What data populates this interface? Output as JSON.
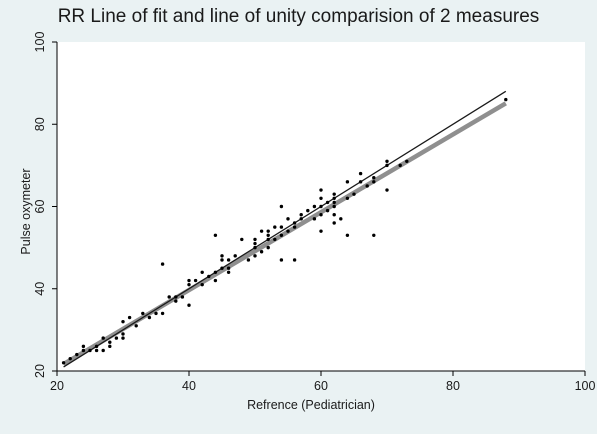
{
  "chart_data": {
    "type": "scatter",
    "title": "RR Line of fit and line of unity comparision of 2 measures",
    "xlabel": "Refrence (Pediatrician)",
    "ylabel": "Pulse oxymeter",
    "xlim": [
      20,
      100
    ],
    "ylim": [
      20,
      100
    ],
    "xticks": [
      20,
      40,
      60,
      80,
      100
    ],
    "yticks": [
      20,
      40,
      60,
      80,
      100
    ],
    "grid": false,
    "legend": "none",
    "colors": {
      "background": "#eaf2f3",
      "plot_area": "#ffffff",
      "points": "#000000",
      "unity_line": "#1a1a1a",
      "fit_line": "#8f8f8f"
    },
    "series": [
      {
        "kind": "points",
        "points": [
          [
            21,
            22
          ],
          [
            22,
            23
          ],
          [
            23,
            24
          ],
          [
            24,
            25
          ],
          [
            24,
            26
          ],
          [
            25,
            25
          ],
          [
            26,
            26
          ],
          [
            26,
            25
          ],
          [
            27,
            28
          ],
          [
            27,
            25
          ],
          [
            28,
            27
          ],
          [
            28,
            26
          ],
          [
            29,
            28
          ],
          [
            30,
            29
          ],
          [
            30,
            28
          ],
          [
            30,
            32
          ],
          [
            31,
            33
          ],
          [
            32,
            31
          ],
          [
            33,
            34
          ],
          [
            34,
            33
          ],
          [
            35,
            34
          ],
          [
            36,
            34
          ],
          [
            36,
            46
          ],
          [
            37,
            38
          ],
          [
            38,
            37
          ],
          [
            38,
            38
          ],
          [
            39,
            38
          ],
          [
            40,
            36
          ],
          [
            40,
            41
          ],
          [
            40,
            42
          ],
          [
            41,
            42
          ],
          [
            42,
            41
          ],
          [
            42,
            44
          ],
          [
            43,
            43
          ],
          [
            44,
            42
          ],
          [
            44,
            44
          ],
          [
            44,
            53
          ],
          [
            45,
            45
          ],
          [
            45,
            47
          ],
          [
            45,
            48
          ],
          [
            46,
            44
          ],
          [
            46,
            45
          ],
          [
            46,
            47
          ],
          [
            47,
            48
          ],
          [
            48,
            52
          ],
          [
            49,
            47
          ],
          [
            50,
            48
          ],
          [
            50,
            50
          ],
          [
            50,
            51
          ],
          [
            50,
            52
          ],
          [
            51,
            49
          ],
          [
            51,
            54
          ],
          [
            52,
            50
          ],
          [
            52,
            52
          ],
          [
            52,
            53
          ],
          [
            52,
            54
          ],
          [
            53,
            52
          ],
          [
            53,
            55
          ],
          [
            54,
            47
          ],
          [
            54,
            53
          ],
          [
            54,
            55
          ],
          [
            54,
            60
          ],
          [
            55,
            54
          ],
          [
            55,
            57
          ],
          [
            56,
            47
          ],
          [
            56,
            55
          ],
          [
            56,
            56
          ],
          [
            57,
            57
          ],
          [
            57,
            58
          ],
          [
            58,
            59
          ],
          [
            59,
            57
          ],
          [
            59,
            60
          ],
          [
            60,
            54
          ],
          [
            60,
            58
          ],
          [
            60,
            60
          ],
          [
            60,
            62
          ],
          [
            60,
            64
          ],
          [
            61,
            59
          ],
          [
            61,
            61
          ],
          [
            62,
            56
          ],
          [
            62,
            58
          ],
          [
            62,
            60
          ],
          [
            62,
            61
          ],
          [
            62,
            62
          ],
          [
            62,
            63
          ],
          [
            63,
            57
          ],
          [
            64,
            53
          ],
          [
            64,
            62
          ],
          [
            64,
            66
          ],
          [
            65,
            63
          ],
          [
            66,
            66
          ],
          [
            66,
            68
          ],
          [
            67,
            65
          ],
          [
            68,
            53
          ],
          [
            68,
            66
          ],
          [
            68,
            67
          ],
          [
            70,
            64
          ],
          [
            70,
            70
          ],
          [
            70,
            71
          ],
          [
            72,
            70
          ],
          [
            73,
            71
          ],
          [
            88,
            86
          ]
        ]
      },
      {
        "kind": "line",
        "role": "line of unity",
        "x": [
          21,
          88
        ],
        "y": [
          21,
          88
        ]
      },
      {
        "kind": "line",
        "role": "line of fit",
        "x": [
          21,
          88
        ],
        "y": [
          21.7,
          85.1
        ]
      }
    ]
  }
}
